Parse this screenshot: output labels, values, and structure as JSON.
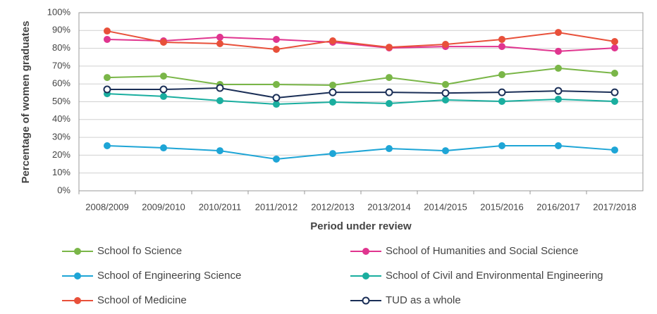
{
  "chart_data": {
    "type": "line",
    "x_label": "Period under review",
    "y_label": "Percentage of women graduates",
    "categories": [
      "2008/2009",
      "2009/2010",
      "2010/2011",
      "2011/2012",
      "2012/2013",
      "2013/2014",
      "2014/2015",
      "2015/2016",
      "2016/2017",
      "2017/2018"
    ],
    "series": [
      {
        "name": "School fo Science",
        "color": "#7ab648",
        "values": [
          63.6,
          64.4,
          59.7,
          59.7,
          59.3,
          63.6,
          59.7,
          65.2,
          68.8,
          66.0
        ]
      },
      {
        "name": "School of Humanities and Social Science",
        "color": "#e0358f",
        "values": [
          85,
          84.2,
          86.2,
          85,
          83.4,
          80.2,
          81,
          81,
          78.3,
          80.2
        ]
      },
      {
        "name": "School of Engineering Science",
        "color": "#1ea5d6",
        "values": [
          25.3,
          24.1,
          22.5,
          17.8,
          20.9,
          23.7,
          22.5,
          25.3,
          25.3,
          22.9
        ]
      },
      {
        "name": "School of Civil and Environmental Engineering",
        "color": "#1aae9f",
        "values": [
          54.5,
          53,
          50.6,
          48.6,
          49.8,
          49,
          51,
          50.2,
          51.4,
          50.2
        ]
      },
      {
        "name": "School of Medicine",
        "color": "#e8503a",
        "values": [
          89.7,
          83.4,
          82.6,
          79.4,
          84.2,
          80.6,
          82.2,
          85,
          88.9,
          83.8
        ]
      },
      {
        "name": "TUD as a whole",
        "color": "#1b2f57",
        "hollow": true,
        "values": [
          56.9,
          56.9,
          57.7,
          52.2,
          55.3,
          55.3,
          54.9,
          55.3,
          56.1,
          55.3
        ]
      }
    ],
    "ylim": [
      0,
      100
    ],
    "yticks": [
      {
        "value": 0,
        "label": "0%"
      },
      {
        "value": 10,
        "label": "10%"
      },
      {
        "value": 20,
        "label": "20%"
      },
      {
        "value": 30,
        "label": "30%"
      },
      {
        "value": 40,
        "label": "40%"
      },
      {
        "value": 50,
        "label": "50%"
      },
      {
        "value": 60,
        "label": "60%"
      },
      {
        "value": 70,
        "label": "70%"
      },
      {
        "value": 80,
        "label": "80%"
      },
      {
        "value": 90,
        "label": "90%"
      },
      {
        "value": 100,
        "label": "100%"
      }
    ],
    "grid": true
  }
}
